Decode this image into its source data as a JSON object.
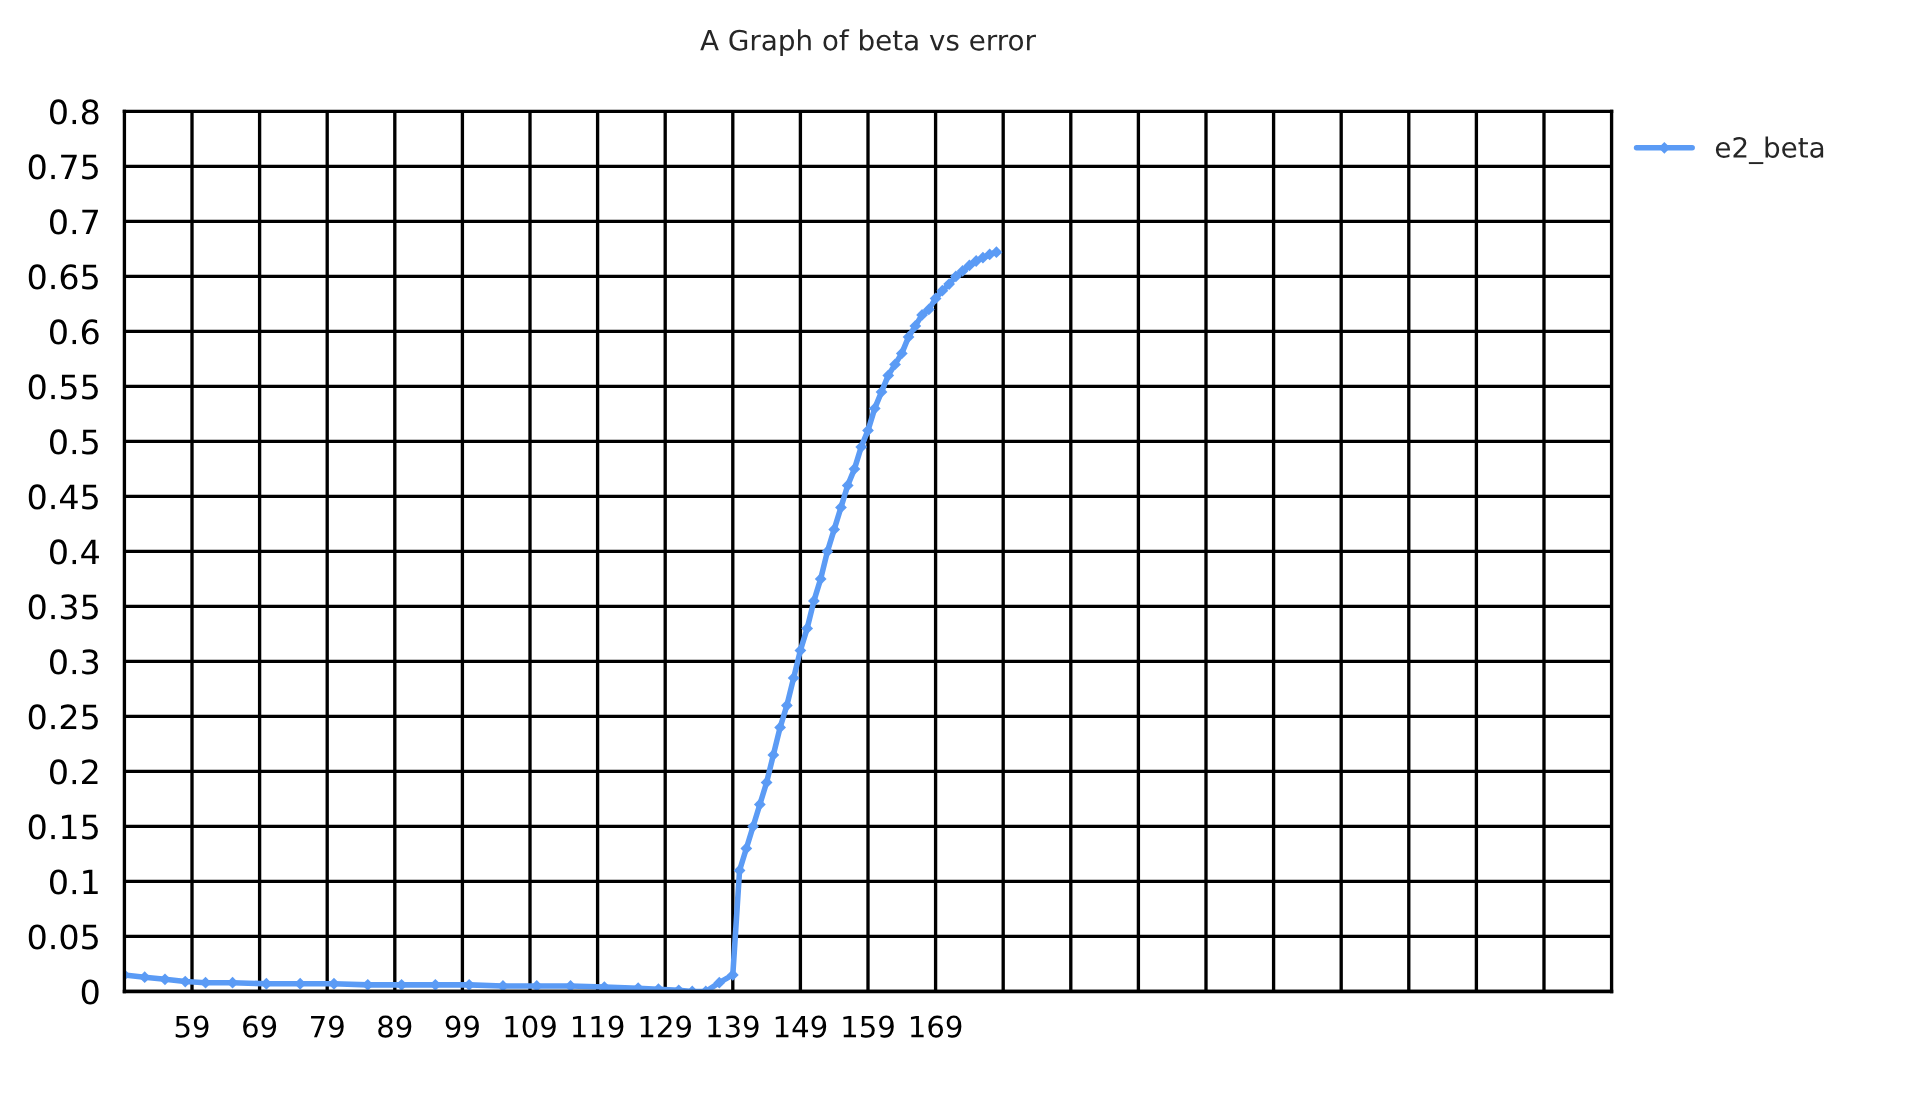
{
  "chart_data": {
    "type": "line",
    "title": "A Graph of beta vs error",
    "series": [
      {
        "name": "e2_beta",
        "color": "#5b9bf5",
        "x": [
          49,
          52,
          55,
          58,
          61,
          65,
          70,
          75,
          80,
          85,
          90,
          95,
          100,
          105,
          110,
          115,
          120,
          125,
          128,
          131,
          133,
          135,
          137,
          139,
          140,
          141,
          142,
          143,
          144,
          145,
          146,
          147,
          148,
          149,
          150,
          151,
          152,
          153,
          154,
          155,
          156,
          157,
          158,
          159,
          160,
          161,
          162,
          163,
          164,
          165,
          166,
          167,
          168,
          169,
          170,
          171,
          172,
          173,
          174,
          175,
          176,
          177,
          178
        ],
        "values": [
          0.015,
          0.013,
          0.011,
          0.009,
          0.008,
          0.008,
          0.007,
          0.007,
          0.007,
          0.006,
          0.006,
          0.006,
          0.006,
          0.005,
          0.005,
          0.005,
          0.004,
          0.003,
          0.002,
          0.001,
          0.0,
          0.0,
          0.008,
          0.015,
          0.11,
          0.13,
          0.15,
          0.17,
          0.19,
          0.215,
          0.24,
          0.26,
          0.285,
          0.31,
          0.33,
          0.355,
          0.375,
          0.4,
          0.42,
          0.44,
          0.46,
          0.475,
          0.495,
          0.51,
          0.53,
          0.545,
          0.56,
          0.57,
          0.58,
          0.595,
          0.605,
          0.615,
          0.62,
          0.63,
          0.637,
          0.643,
          0.65,
          0.655,
          0.66,
          0.664,
          0.667,
          0.67,
          0.672
        ]
      }
    ],
    "xlim": [
      49,
      269
    ],
    "xticks": [
      59,
      69,
      79,
      89,
      99,
      109,
      119,
      129,
      139,
      149,
      159,
      169,
      {
        "value": 179,
        "label": null
      },
      {
        "value": 189,
        "label": null
      },
      {
        "value": 199,
        "label": null
      },
      {
        "value": 209,
        "label": null
      },
      {
        "value": 219,
        "label": null
      },
      {
        "value": 229,
        "label": null
      },
      {
        "value": 239,
        "label": null
      },
      {
        "value": 249,
        "label": null
      },
      {
        "value": 259,
        "label": null
      }
    ],
    "ylim": [
      0,
      0.8
    ],
    "yticks": [
      0,
      0.05,
      0.1,
      0.15,
      0.2,
      0.25,
      0.3,
      0.35,
      0.4,
      0.45,
      0.5,
      0.55,
      0.6,
      0.65,
      0.7,
      0.75,
      0.8
    ],
    "grid": true,
    "legend": "top right",
    "marker": "diamond",
    "line_style": "solid"
  }
}
